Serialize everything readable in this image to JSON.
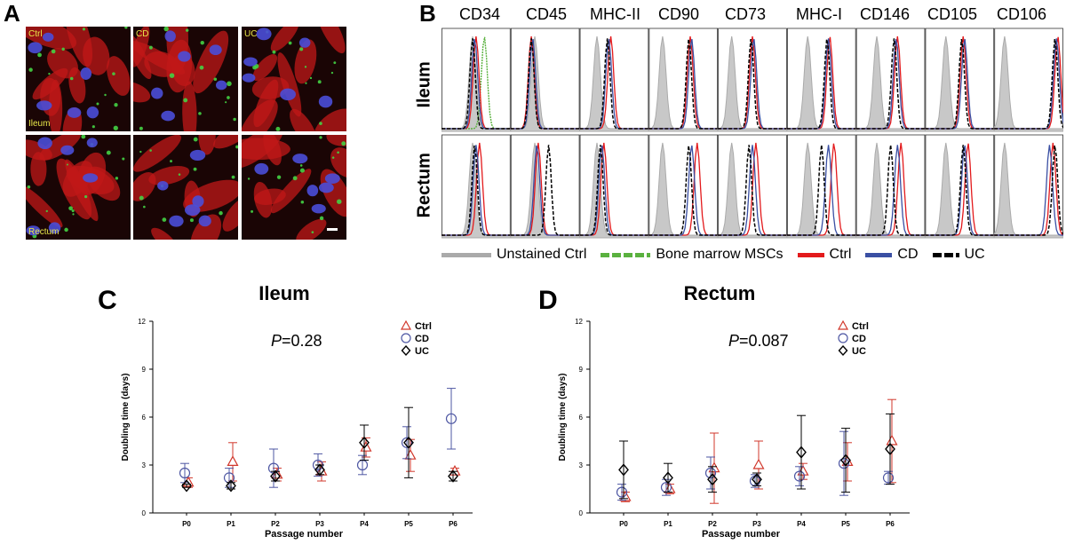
{
  "panels": {
    "a": "A",
    "b": "B",
    "c": "C",
    "d": "D"
  },
  "micrographs": {
    "labels": {
      "ctrl": "Ctrl",
      "cd": "CD",
      "uc": "UC",
      "ileum": "Ileum",
      "rectum": "Rectum"
    }
  },
  "flow": {
    "markers": [
      "CD34",
      "CD45",
      "MHC-II",
      "CD90",
      "CD73",
      "MHC-I",
      "CD146",
      "CD105",
      "CD106"
    ],
    "rows": [
      "Ileum",
      "Rectum"
    ],
    "legend": [
      {
        "label": "Unstained Ctrl",
        "color": "#aaaaaa",
        "style": "solid"
      },
      {
        "label": "Bone marrow MSCs",
        "color": "#5ab13f",
        "style": "dashed"
      },
      {
        "label": "Ctrl",
        "color": "#e31a1c",
        "style": "solid"
      },
      {
        "label": "CD",
        "color": "#3a4fa3",
        "style": "solid"
      },
      {
        "label": "UC",
        "color": "#000000",
        "style": "dashed"
      }
    ],
    "peak_positions": {
      "Ileum": {
        "unstained": [
          0.45,
          0.35,
          0.25,
          0.2,
          0.2,
          0.3,
          0.3,
          0.3,
          0.15
        ],
        "ctrl": [
          0.5,
          0.3,
          0.45,
          0.6,
          0.5,
          0.62,
          0.6,
          0.55,
          0.92
        ],
        "cd": [
          0.48,
          0.32,
          0.42,
          0.62,
          0.52,
          0.6,
          0.58,
          0.57,
          0.9
        ],
        "uc": [
          0.45,
          0.3,
          0.4,
          0.58,
          0.48,
          0.58,
          0.55,
          0.53,
          0.88
        ]
      },
      "Rectum": {
        "unstained": [
          0.45,
          0.35,
          0.25,
          0.2,
          0.2,
          0.3,
          0.3,
          0.3,
          0.15
        ],
        "ctrl": [
          0.55,
          0.4,
          0.35,
          0.7,
          0.55,
          0.68,
          0.65,
          0.62,
          0.85
        ],
        "cd": [
          0.5,
          0.38,
          0.32,
          0.62,
          0.5,
          0.6,
          0.6,
          0.57,
          0.8
        ],
        "uc": [
          0.48,
          0.55,
          0.3,
          0.58,
          0.45,
          0.5,
          0.5,
          0.55,
          0.88
        ]
      }
    }
  },
  "chart_data": [
    {
      "type": "scatter",
      "title": "Ileum",
      "annotation_p": "P",
      "annotation_val": "=0.28",
      "xlabel": "Passage number",
      "ylabel": "Doubling time (days)",
      "categories": [
        "P0",
        "P1",
        "P2",
        "P3",
        "P4",
        "P5",
        "P6"
      ],
      "ylim": [
        0,
        12
      ],
      "yticks": [
        "0",
        "3",
        "6",
        "9",
        "12"
      ],
      "series": [
        {
          "name": "Ctrl",
          "color": "#d1372b",
          "marker": "triangle",
          "values": [
            1.9,
            3.2,
            2.4,
            2.6,
            4.1,
            3.6,
            2.6
          ],
          "err": [
            0.3,
            1.2,
            0.4,
            0.6,
            0.6,
            1.0,
            0.2
          ]
        },
        {
          "name": "CD",
          "color": "#4e57a3",
          "marker": "circle",
          "values": [
            2.5,
            2.2,
            2.8,
            3.0,
            3.0,
            4.4,
            5.9
          ],
          "err": [
            0.6,
            0.6,
            1.2,
            0.7,
            0.6,
            1.0,
            1.9
          ]
        },
        {
          "name": "UC",
          "color": "#000000",
          "marker": "diamond",
          "values": [
            1.7,
            1.7,
            2.3,
            2.7,
            4.4,
            4.4,
            2.3
          ],
          "err": [
            0.1,
            0.2,
            0.3,
            0.3,
            1.1,
            2.2,
            0.3
          ]
        }
      ]
    },
    {
      "type": "scatter",
      "title": "Rectum",
      "annotation_p": "P",
      "annotation_val": "=0.087",
      "xlabel": "Passage number",
      "ylabel": "Doubling time (days)",
      "categories": [
        "P0",
        "P1",
        "P2",
        "P3",
        "P4",
        "P5",
        "P6"
      ],
      "ylim": [
        0,
        12
      ],
      "yticks": [
        "0",
        "3",
        "6",
        "9",
        "12"
      ],
      "series": [
        {
          "name": "Ctrl",
          "color": "#d1372b",
          "marker": "triangle",
          "values": [
            1.0,
            1.5,
            2.8,
            3.0,
            2.6,
            3.2,
            4.5
          ],
          "err": [
            0.3,
            0.3,
            2.2,
            1.5,
            0.5,
            1.2,
            2.6
          ]
        },
        {
          "name": "CD",
          "color": "#4e57a3",
          "marker": "circle",
          "values": [
            1.3,
            1.6,
            2.5,
            2.0,
            2.3,
            3.1,
            2.2
          ],
          "err": [
            0.5,
            0.5,
            1.0,
            0.4,
            0.6,
            2.0,
            0.4
          ]
        },
        {
          "name": "UC",
          "color": "#000000",
          "marker": "diamond",
          "values": [
            2.7,
            2.2,
            2.1,
            2.1,
            3.8,
            3.3,
            4.0
          ],
          "err": [
            1.8,
            0.9,
            0.8,
            0.4,
            2.3,
            2.0,
            2.2
          ]
        }
      ]
    }
  ]
}
